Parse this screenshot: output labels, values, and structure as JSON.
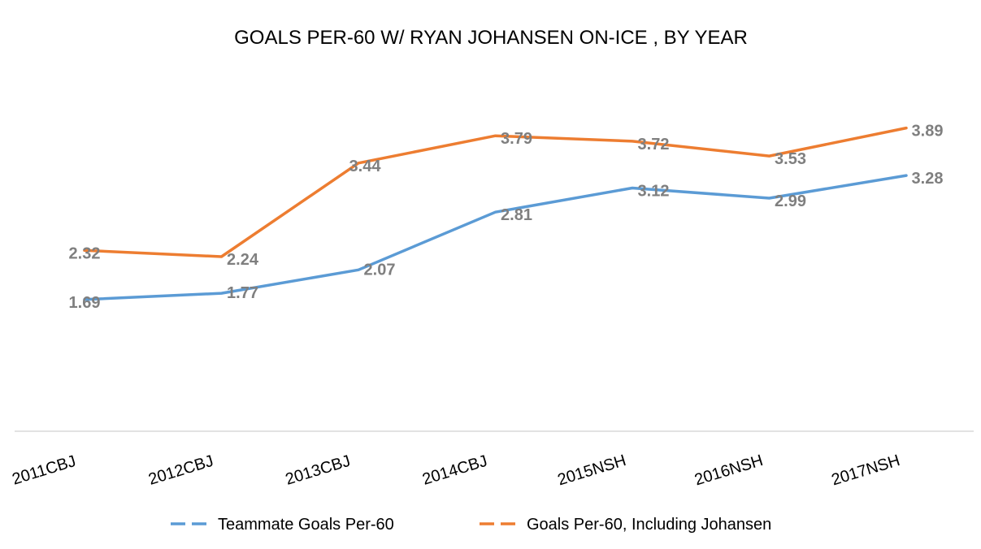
{
  "chart_data": {
    "type": "line",
    "title": "GOALS PER-60 W/ RYAN JOHANSEN ON-ICE , BY YEAR",
    "xlabel": "",
    "ylabel": "",
    "categories": [
      "2011CBJ",
      "2012CBJ",
      "2013CBJ",
      "2014CBJ",
      "2015NSH",
      "2016NSH",
      "2017NSH"
    ],
    "series": [
      {
        "name": "Teammate Goals Per-60",
        "color": "#5b9bd5",
        "values": [
          1.69,
          1.77,
          2.07,
          2.81,
          3.12,
          2.99,
          3.28
        ],
        "labels": [
          "1.69",
          "1.77",
          "2.07",
          "2.81",
          "3.12",
          "2.99",
          "3.28"
        ]
      },
      {
        "name": "Goals Per-60, Including Johansen",
        "color": "#ed7d31",
        "values": [
          2.32,
          2.24,
          3.44,
          3.79,
          3.72,
          3.53,
          3.89
        ],
        "labels": [
          "2.32",
          "2.24",
          "3.44",
          "3.79",
          "3.72",
          "3.53",
          "3.89"
        ]
      }
    ],
    "ylim": [
      0,
      4.5
    ],
    "grid": false,
    "legend_position": "bottom",
    "axis_color": "#d9d9d9",
    "label_color": "#7f7f7f"
  }
}
